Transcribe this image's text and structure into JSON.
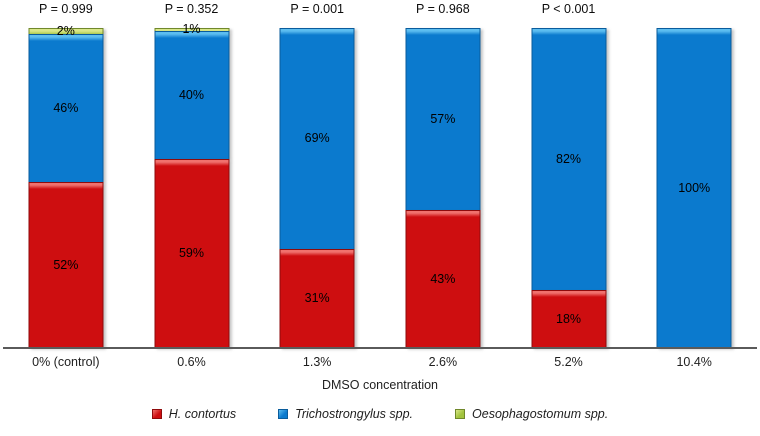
{
  "chart_data": {
    "type": "bar",
    "stacked": true,
    "orientation": "vertical",
    "title": "",
    "xlabel": "DMSO concentration",
    "ylabel": "",
    "ylim": [
      0,
      100
    ],
    "grid": false,
    "legend_position": "bottom",
    "value_suffix": "%",
    "categories": [
      "0% (control)",
      "0.6%",
      "1.3%",
      "2.6%",
      "5.2%",
      "10.4%"
    ],
    "p_labels": [
      "P = 0.999",
      "P = 0.352",
      "P = 0.001",
      "P = 0.968",
      "P < 0.001",
      ""
    ],
    "series": [
      {
        "name": "H. contortus",
        "color": "#ce0e10",
        "highlight": "#f0716d",
        "edge": "#8f0b0c",
        "values": [
          52,
          59,
          31,
          43,
          18,
          0
        ]
      },
      {
        "name": "Trichostrongylus spp.",
        "color": "#0b7ace",
        "highlight": "#5cbdf0",
        "edge": "#0a5c9c",
        "values": [
          46,
          40,
          69,
          57,
          82,
          100
        ]
      },
      {
        "name": "Oesophagostomum spp.",
        "color": "#a2c33d",
        "highlight": "#d9e788",
        "edge": "#70882b",
        "values": [
          2,
          1,
          0,
          0,
          0,
          0
        ]
      }
    ],
    "axis_line_color": "#5a5a5a",
    "text_color": "#1f1f1f"
  }
}
